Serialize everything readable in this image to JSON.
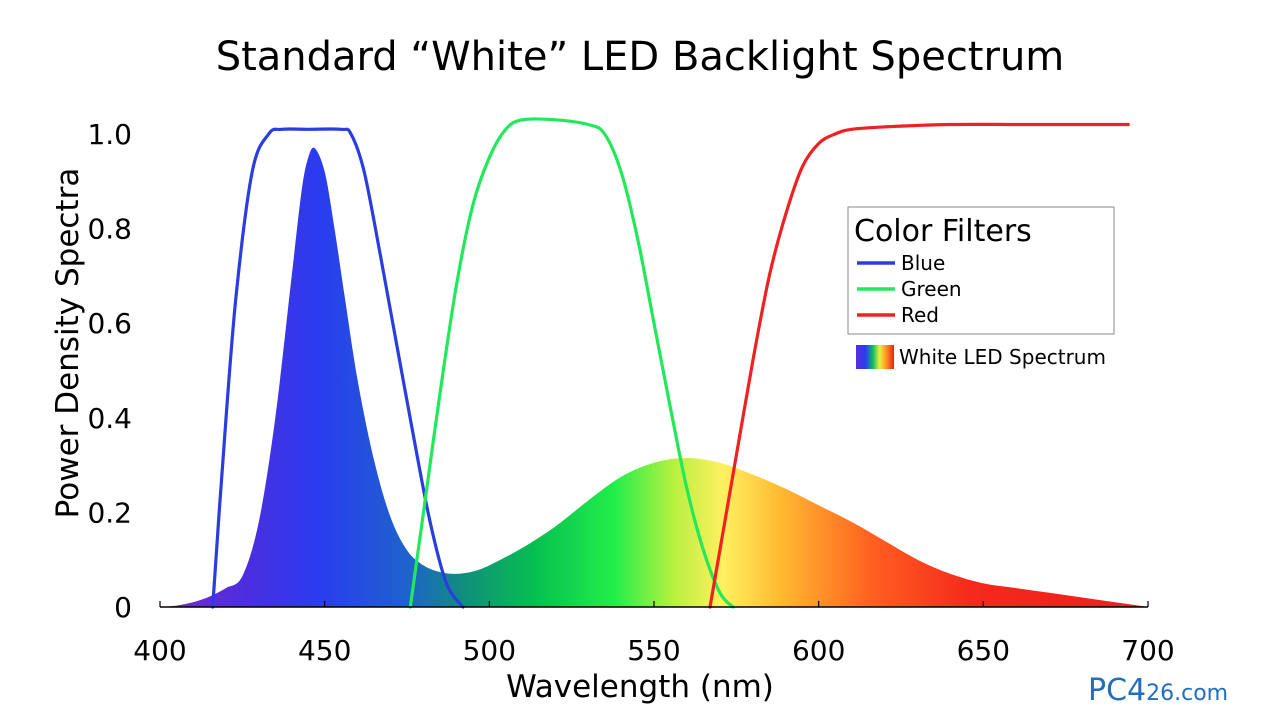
{
  "chart_data": {
    "type": "area",
    "title": "Standard “White” LED Backlight Spectrum",
    "xlabel": "Wavelength (nm)",
    "ylabel": "Power Density Spectra",
    "xlim": [
      400,
      700
    ],
    "ylim": [
      0,
      1.0
    ],
    "grid": false,
    "x_ticks": [
      {
        "value": 400,
        "label": "400"
      },
      {
        "value": 450,
        "label": "450"
      },
      {
        "value": 500,
        "label": "500"
      },
      {
        "value": 550,
        "label": "550"
      },
      {
        "value": 600,
        "label": "600"
      },
      {
        "value": 650,
        "label": "650"
      },
      {
        "value": 700,
        "label": "700"
      }
    ],
    "y_ticks": [
      {
        "value": 0,
        "label": "0"
      },
      {
        "value": 0.2,
        "label": "0.2"
      },
      {
        "value": 0.4,
        "label": "0.4"
      },
      {
        "value": 0.6,
        "label": "0.6"
      },
      {
        "value": 0.8,
        "label": "0.8"
      },
      {
        "value": 1.0,
        "label": "1.0"
      }
    ],
    "legend": {
      "title": "Color Filters",
      "placement": "right",
      "entries": [
        {
          "label": "Blue",
          "color": "#2a3ee0"
        },
        {
          "label": "Green",
          "color": "#22e85a"
        },
        {
          "label": "Red",
          "color": "#ee2222"
        }
      ],
      "spectrum_label": "White LED Spectrum"
    },
    "series": [
      {
        "name": "White LED Spectrum",
        "kind": "area",
        "x": [
          400,
          405,
          410,
          415,
          420,
          425,
          430,
          435,
          440,
          443,
          445,
          447,
          450,
          453,
          456,
          460,
          465,
          470,
          475,
          480,
          485,
          490,
          495,
          500,
          510,
          520,
          530,
          540,
          550,
          560,
          570,
          580,
          590,
          600,
          610,
          620,
          630,
          640,
          650,
          660,
          670,
          680,
          690,
          700
        ],
        "y": [
          0.0,
          0.003,
          0.01,
          0.022,
          0.04,
          0.065,
          0.18,
          0.4,
          0.7,
          0.88,
          0.95,
          0.97,
          0.92,
          0.8,
          0.66,
          0.48,
          0.31,
          0.19,
          0.12,
          0.088,
          0.074,
          0.07,
          0.075,
          0.088,
          0.125,
          0.17,
          0.225,
          0.275,
          0.305,
          0.315,
          0.305,
          0.28,
          0.25,
          0.215,
          0.18,
          0.14,
          0.1,
          0.07,
          0.05,
          0.04,
          0.03,
          0.02,
          0.01,
          0.0
        ]
      },
      {
        "name": "Blue",
        "kind": "line",
        "color": "#2a3ee0",
        "x": [
          416,
          419,
          423,
          428,
          433,
          437,
          445,
          455,
          458,
          462,
          467,
          472,
          477,
          482,
          487,
          492
        ],
        "y": [
          0.0,
          0.3,
          0.65,
          0.92,
          1.0,
          1.01,
          1.01,
          1.01,
          1.0,
          0.92,
          0.74,
          0.55,
          0.36,
          0.18,
          0.05,
          0.0
        ]
      },
      {
        "name": "Green",
        "kind": "line",
        "color": "#22e85a",
        "x": [
          476,
          480,
          485,
          490,
          495,
          500,
          505,
          510,
          520,
          530,
          535,
          540,
          545,
          550,
          555,
          560,
          565,
          570,
          574
        ],
        "y": [
          0.0,
          0.2,
          0.45,
          0.68,
          0.85,
          0.95,
          1.01,
          1.03,
          1.03,
          1.02,
          1.0,
          0.92,
          0.78,
          0.6,
          0.42,
          0.25,
          0.12,
          0.03,
          0.0
        ]
      },
      {
        "name": "Red",
        "kind": "line",
        "color": "#ee2222",
        "x": [
          567,
          570,
          575,
          580,
          585,
          590,
          595,
          600,
          605,
          610,
          620,
          640,
          660,
          680,
          694
        ],
        "y": [
          0.0,
          0.12,
          0.32,
          0.52,
          0.7,
          0.83,
          0.93,
          0.98,
          1.0,
          1.01,
          1.015,
          1.02,
          1.02,
          1.02,
          1.02
        ]
      }
    ]
  },
  "watermark": {
    "text_a": "PC",
    "text_b": "4",
    "text_c": "26.com"
  }
}
